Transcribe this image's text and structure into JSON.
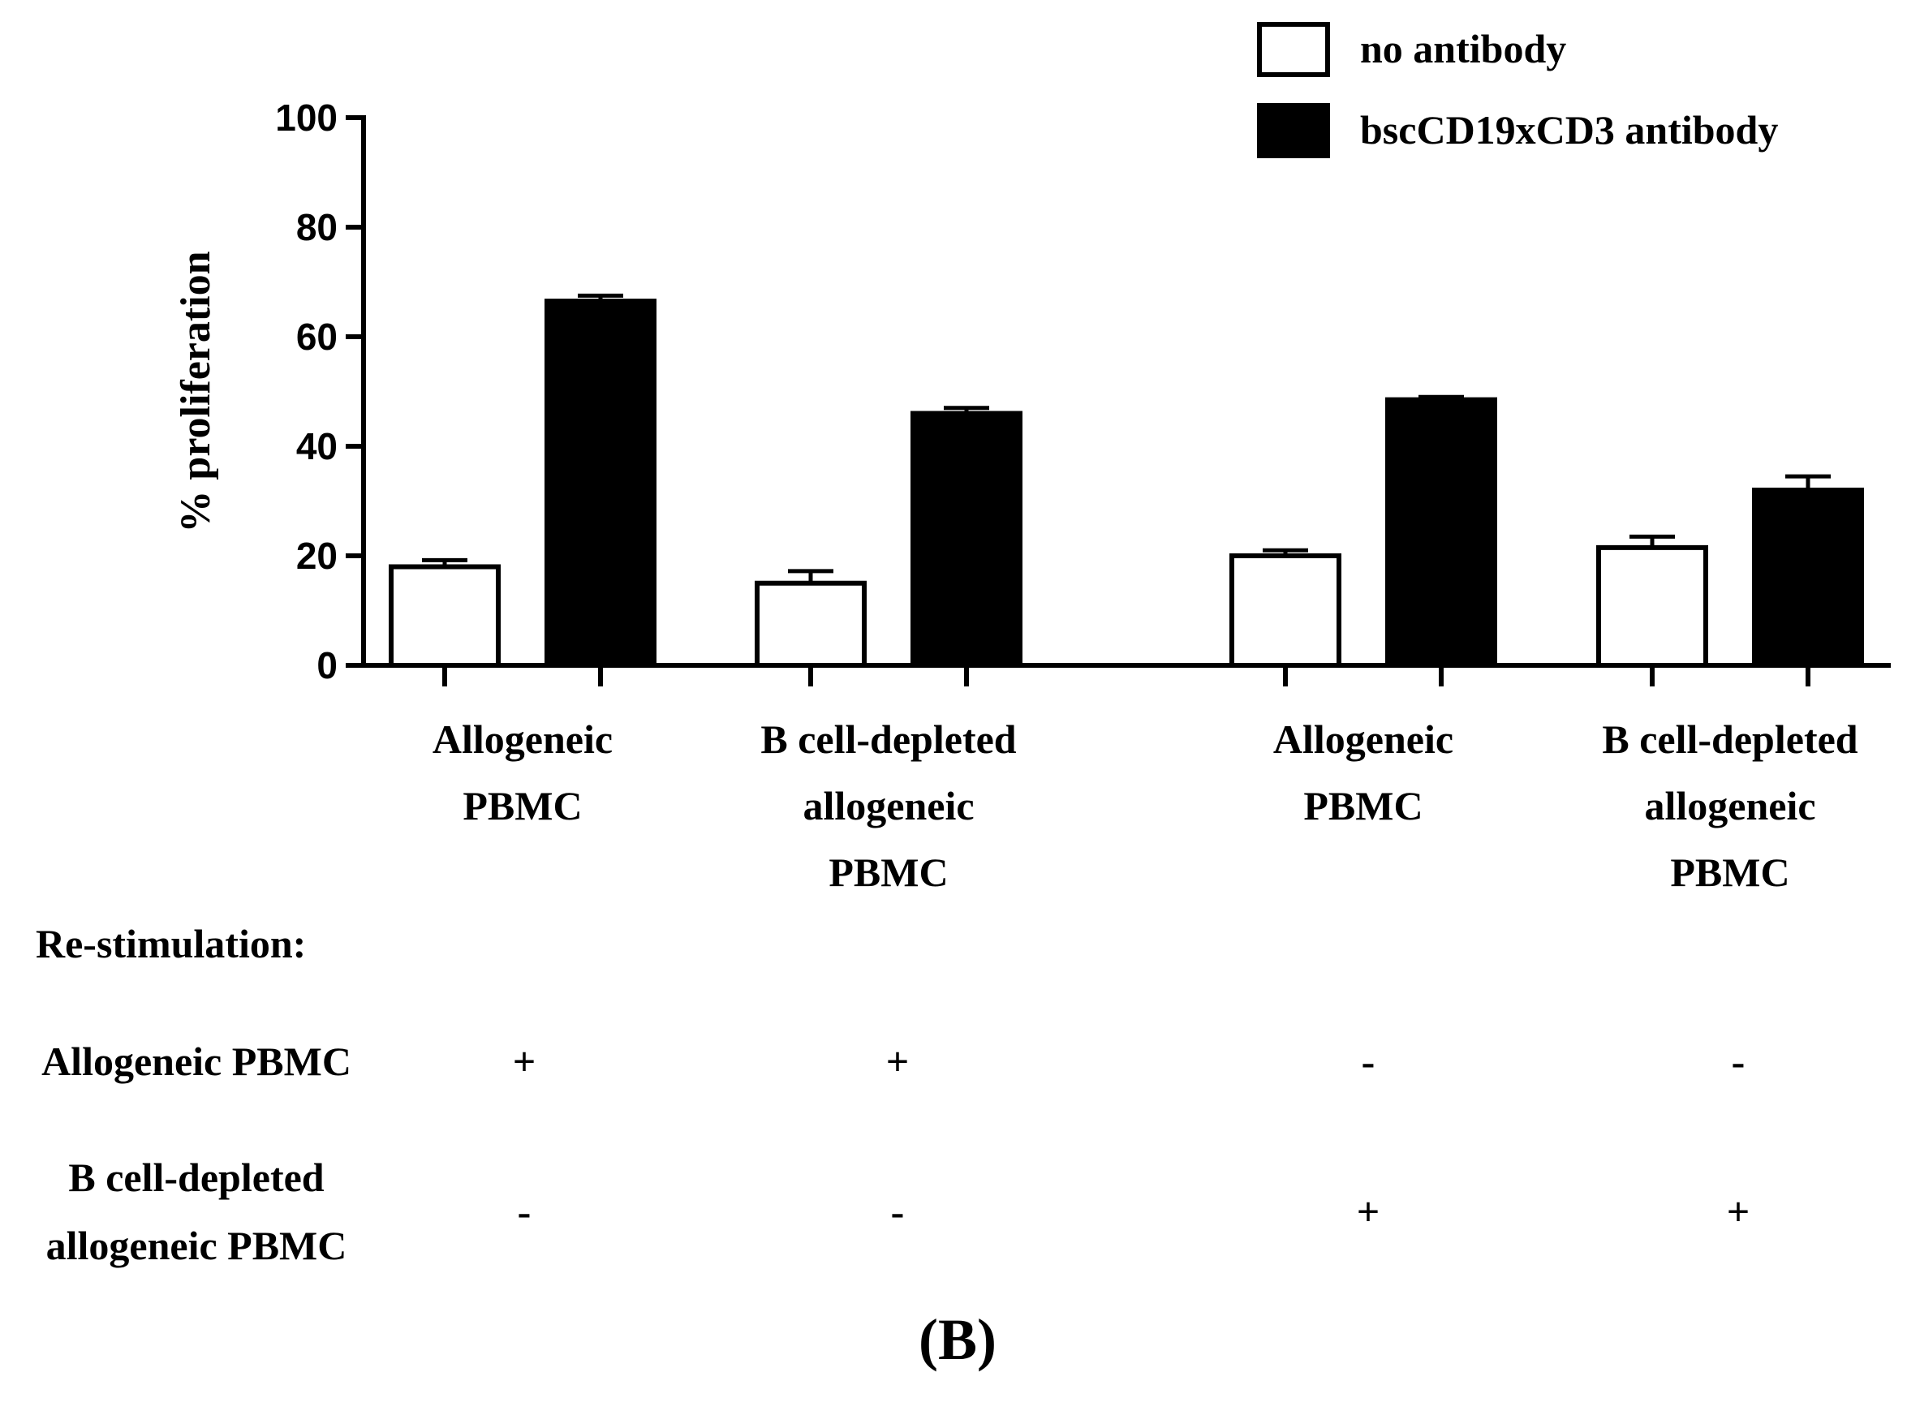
{
  "chart_data": {
    "type": "bar",
    "title": "",
    "xlabel": "",
    "ylabel": "% proliferation",
    "ylim": [
      0,
      100
    ],
    "yticks": [
      "0",
      "20",
      "40",
      "60",
      "80",
      "100"
    ],
    "categories": [
      [
        "Allogeneic",
        "PBMC"
      ],
      [
        "B cell-depleted",
        "allogeneic",
        "PBMC"
      ],
      [
        "Allogeneic",
        "PBMC"
      ],
      [
        "B cell-depleted",
        "allogeneic",
        "PBMC"
      ]
    ],
    "series": [
      {
        "name": "no antibody",
        "color": "#ffffff",
        "values": [
          18,
          15,
          20,
          21.5
        ],
        "errors": [
          1.2,
          2.2,
          1.0,
          2.0
        ]
      },
      {
        "name": "bscCD19xCD3 antibody",
        "color": "#000000",
        "values": [
          66.5,
          46,
          48.5,
          32
        ],
        "errors": [
          1.0,
          1.0,
          0.5,
          2.5
        ]
      }
    ],
    "legend_position": "top-right",
    "grid": false
  },
  "restim": {
    "heading": "Re-stimulation:",
    "rows": [
      {
        "label": [
          "Allogeneic PBMC"
        ],
        "values": [
          "+",
          "+",
          "-",
          "-"
        ]
      },
      {
        "label": [
          "B cell-depleted",
          "allogeneic PBMC"
        ],
        "values": [
          "-",
          "-",
          "+",
          "+"
        ]
      }
    ]
  },
  "panel_label": "(B)"
}
